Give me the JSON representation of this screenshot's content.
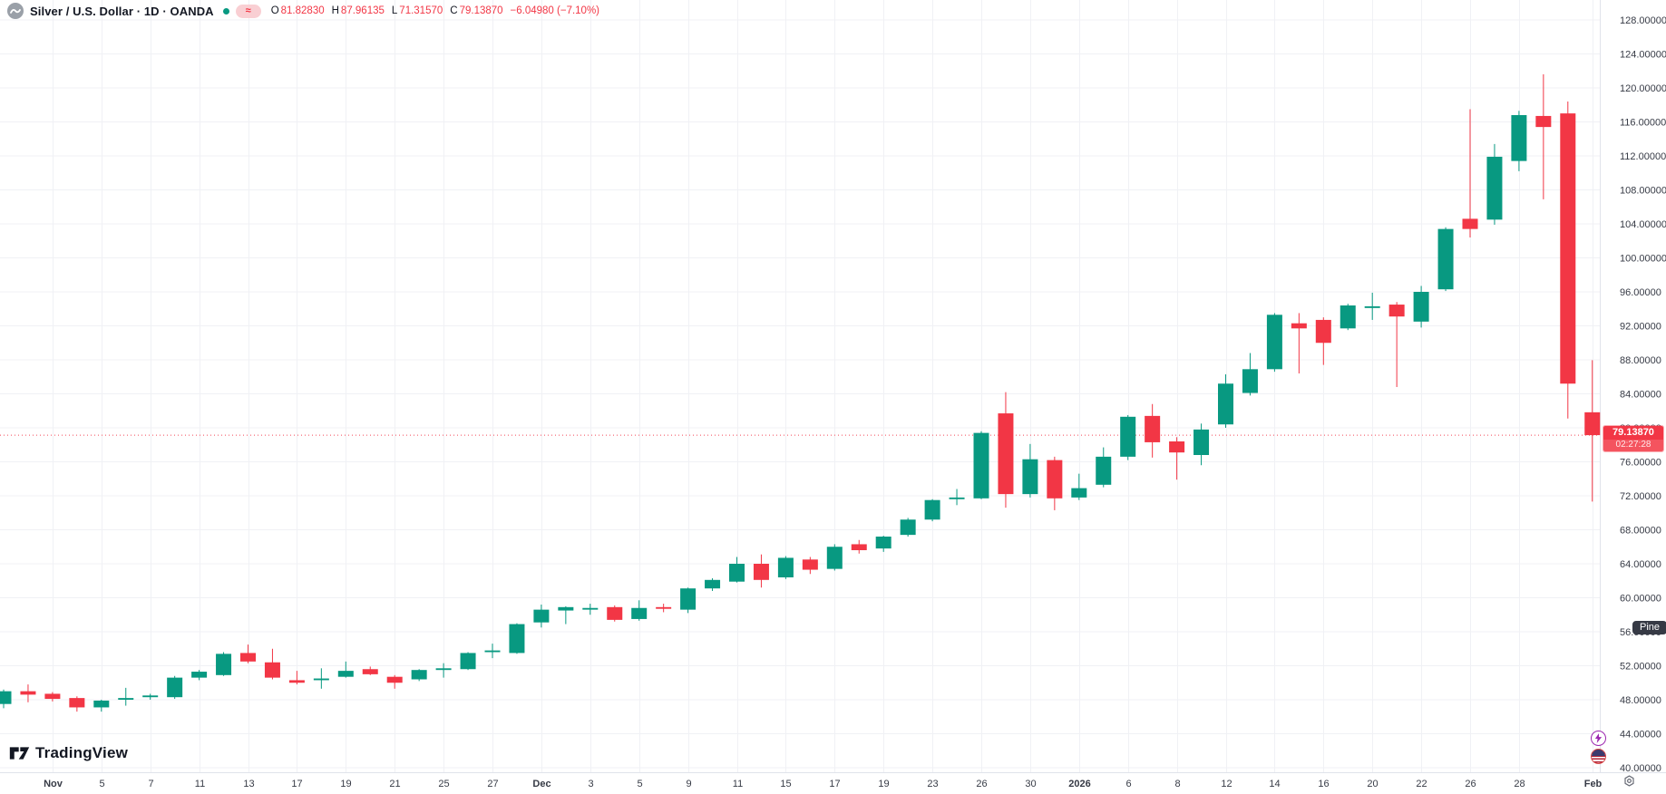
{
  "header": {
    "symbol_title": "Silver / U.S. Dollar · 1D · OANDA",
    "market_status_glyph": "≈",
    "ohlc_pairs": [
      {
        "k": "O",
        "v": "81.82830"
      },
      {
        "k": "H",
        "v": "87.96135"
      },
      {
        "k": "L",
        "v": "71.31570"
      },
      {
        "k": "C",
        "v": "79.13870"
      }
    ],
    "change_text": "−6.04980 (−7.10%)"
  },
  "badge": {
    "price": "79.13870",
    "countdown": "02:27:28"
  },
  "tooltip": {
    "text": "Pine"
  },
  "watermark": {
    "text": "TradingView"
  },
  "colors": {
    "up": "#089981",
    "down": "#f23645",
    "grid": "#f0f1f5",
    "axis_border": "#e0e3eb",
    "axis_text": "#363a45",
    "price_line": "#f23645",
    "badge_bg": "#f23645",
    "tooltip_bg": "#363a45",
    "bolt_purple": "#9c27b0"
  },
  "chart_data": {
    "type": "candlestick",
    "title": "Silver / U.S. Dollar",
    "interval": "1D",
    "exchange": "OANDA",
    "ylim": [
      40,
      128
    ],
    "y_tick_step": 4,
    "y_tick_labels": [
      "128.00000",
      "124.00000",
      "120.00000",
      "116.00000",
      "112.00000",
      "108.00000",
      "104.00000",
      "100.00000",
      "96.00000",
      "92.00000",
      "88.00000",
      "84.00000",
      "80.00000",
      "76.00000",
      "72.00000",
      "68.00000",
      "64.00000",
      "60.00000",
      "56.00000",
      "52.00000",
      "48.00000",
      "44.00000",
      "40.00000"
    ],
    "current_price": 79.1387,
    "grid": true,
    "x_ticks": [
      {
        "label": "Nov",
        "index": 2,
        "bold": true
      },
      {
        "label": "5",
        "index": 4,
        "bold": false
      },
      {
        "label": "7",
        "index": 6,
        "bold": false
      },
      {
        "label": "11",
        "index": 8,
        "bold": false
      },
      {
        "label": "13",
        "index": 10,
        "bold": false
      },
      {
        "label": "17",
        "index": 12,
        "bold": false
      },
      {
        "label": "19",
        "index": 14,
        "bold": false
      },
      {
        "label": "21",
        "index": 16,
        "bold": false
      },
      {
        "label": "25",
        "index": 18,
        "bold": false
      },
      {
        "label": "27",
        "index": 20,
        "bold": false
      },
      {
        "label": "Dec",
        "index": 22,
        "bold": true
      },
      {
        "label": "3",
        "index": 24,
        "bold": false
      },
      {
        "label": "5",
        "index": 26,
        "bold": false
      },
      {
        "label": "9",
        "index": 28,
        "bold": false
      },
      {
        "label": "11",
        "index": 30,
        "bold": false
      },
      {
        "label": "15",
        "index": 32,
        "bold": false
      },
      {
        "label": "17",
        "index": 34,
        "bold": false
      },
      {
        "label": "19",
        "index": 36,
        "bold": false
      },
      {
        "label": "23",
        "index": 38,
        "bold": false
      },
      {
        "label": "26",
        "index": 40,
        "bold": false
      },
      {
        "label": "30",
        "index": 42,
        "bold": false
      },
      {
        "label": "2026",
        "index": 44,
        "bold": true
      },
      {
        "label": "6",
        "index": 46,
        "bold": false
      },
      {
        "label": "8",
        "index": 48,
        "bold": false
      },
      {
        "label": "12",
        "index": 50,
        "bold": false
      },
      {
        "label": "14",
        "index": 52,
        "bold": false
      },
      {
        "label": "16",
        "index": 54,
        "bold": false
      },
      {
        "label": "20",
        "index": 56,
        "bold": false
      },
      {
        "label": "22",
        "index": 58,
        "bold": false
      },
      {
        "label": "26",
        "index": 60,
        "bold": false
      },
      {
        "label": "28",
        "index": 62,
        "bold": false
      },
      {
        "label": "Feb",
        "index": 65,
        "bold": true
      }
    ],
    "candles": [
      {
        "d": "Oct 30",
        "o": 47.5,
        "h": 49.2,
        "l": 47.0,
        "c": 49.0
      },
      {
        "d": "Oct 31",
        "o": 49.0,
        "h": 49.8,
        "l": 47.7,
        "c": 48.6
      },
      {
        "d": "Nov 3",
        "o": 48.7,
        "h": 48.9,
        "l": 47.8,
        "c": 48.1
      },
      {
        "d": "Nov 4",
        "o": 48.2,
        "h": 48.4,
        "l": 46.6,
        "c": 47.1
      },
      {
        "d": "Nov 5",
        "o": 47.1,
        "h": 48.0,
        "l": 46.6,
        "c": 47.9
      },
      {
        "d": "Nov 6",
        "o": 48.0,
        "h": 49.4,
        "l": 47.3,
        "c": 48.2
      },
      {
        "d": "Nov 7",
        "o": 48.3,
        "h": 48.7,
        "l": 48.0,
        "c": 48.5
      },
      {
        "d": "Nov 10",
        "o": 48.3,
        "h": 50.8,
        "l": 48.1,
        "c": 50.6
      },
      {
        "d": "Nov 11",
        "o": 50.6,
        "h": 51.5,
        "l": 50.3,
        "c": 51.3
      },
      {
        "d": "Nov 12",
        "o": 50.9,
        "h": 53.6,
        "l": 50.8,
        "c": 53.4
      },
      {
        "d": "Nov 13",
        "o": 53.5,
        "h": 54.5,
        "l": 52.3,
        "c": 52.5
      },
      {
        "d": "Nov 14",
        "o": 52.4,
        "h": 54.0,
        "l": 50.4,
        "c": 50.6
      },
      {
        "d": "Nov 17",
        "o": 50.3,
        "h": 51.4,
        "l": 49.8,
        "c": 50.0
      },
      {
        "d": "Nov 18",
        "o": 50.3,
        "h": 51.7,
        "l": 49.3,
        "c": 50.5
      },
      {
        "d": "Nov 19",
        "o": 50.7,
        "h": 52.5,
        "l": 50.6,
        "c": 51.4
      },
      {
        "d": "Nov 20",
        "o": 51.6,
        "h": 51.9,
        "l": 50.9,
        "c": 51.0
      },
      {
        "d": "Nov 21",
        "o": 50.7,
        "h": 50.9,
        "l": 49.3,
        "c": 50.0
      },
      {
        "d": "Nov 24",
        "o": 50.4,
        "h": 51.6,
        "l": 50.2,
        "c": 51.5
      },
      {
        "d": "Nov 25",
        "o": 51.5,
        "h": 52.3,
        "l": 50.6,
        "c": 51.7
      },
      {
        "d": "Nov 26",
        "o": 51.6,
        "h": 53.6,
        "l": 51.5,
        "c": 53.5
      },
      {
        "d": "Nov 27",
        "o": 53.6,
        "h": 54.6,
        "l": 52.9,
        "c": 53.8
      },
      {
        "d": "Nov 28",
        "o": 53.5,
        "h": 57.0,
        "l": 53.4,
        "c": 56.9
      },
      {
        "d": "Dec 1",
        "o": 57.1,
        "h": 59.2,
        "l": 56.5,
        "c": 58.6
      },
      {
        "d": "Dec 2",
        "o": 58.5,
        "h": 59.0,
        "l": 56.9,
        "c": 58.9
      },
      {
        "d": "Dec 3",
        "o": 58.6,
        "h": 59.3,
        "l": 58.0,
        "c": 58.8
      },
      {
        "d": "Dec 4",
        "o": 58.9,
        "h": 59.1,
        "l": 57.2,
        "c": 57.4
      },
      {
        "d": "Dec 5",
        "o": 57.5,
        "h": 59.7,
        "l": 57.3,
        "c": 58.8
      },
      {
        "d": "Dec 8",
        "o": 58.9,
        "h": 59.3,
        "l": 58.3,
        "c": 58.7
      },
      {
        "d": "Dec 9",
        "o": 58.6,
        "h": 61.2,
        "l": 58.2,
        "c": 61.1
      },
      {
        "d": "Dec 10",
        "o": 61.1,
        "h": 62.3,
        "l": 60.8,
        "c": 62.1
      },
      {
        "d": "Dec 11",
        "o": 61.9,
        "h": 64.8,
        "l": 61.8,
        "c": 64.0
      },
      {
        "d": "Dec 12",
        "o": 64.0,
        "h": 65.1,
        "l": 61.2,
        "c": 62.1
      },
      {
        "d": "Dec 15",
        "o": 62.4,
        "h": 64.9,
        "l": 62.2,
        "c": 64.7
      },
      {
        "d": "Dec 16",
        "o": 64.5,
        "h": 64.8,
        "l": 62.8,
        "c": 63.3
      },
      {
        "d": "Dec 17",
        "o": 63.4,
        "h": 66.3,
        "l": 63.2,
        "c": 66.0
      },
      {
        "d": "Dec 18",
        "o": 66.3,
        "h": 66.8,
        "l": 65.2,
        "c": 65.6
      },
      {
        "d": "Dec 19",
        "o": 65.8,
        "h": 67.3,
        "l": 65.4,
        "c": 67.2
      },
      {
        "d": "Dec 22",
        "o": 67.4,
        "h": 69.4,
        "l": 67.2,
        "c": 69.2
      },
      {
        "d": "Dec 23",
        "o": 69.2,
        "h": 71.6,
        "l": 69.0,
        "c": 71.5
      },
      {
        "d": "Dec 24",
        "o": 71.6,
        "h": 72.8,
        "l": 70.9,
        "c": 71.8
      },
      {
        "d": "Dec 26",
        "o": 71.7,
        "h": 79.6,
        "l": 71.6,
        "c": 79.4
      },
      {
        "d": "Dec 29",
        "o": 81.7,
        "h": 84.2,
        "l": 70.6,
        "c": 72.2
      },
      {
        "d": "Dec 30",
        "o": 72.2,
        "h": 78.1,
        "l": 71.8,
        "c": 76.3
      },
      {
        "d": "Dec 31",
        "o": 76.2,
        "h": 76.6,
        "l": 70.3,
        "c": 71.7
      },
      {
        "d": "Jan 2",
        "o": 71.8,
        "h": 74.6,
        "l": 71.5,
        "c": 72.9
      },
      {
        "d": "Jan 5",
        "o": 73.3,
        "h": 77.7,
        "l": 73.0,
        "c": 76.6
      },
      {
        "d": "Jan 6",
        "o": 76.6,
        "h": 81.5,
        "l": 76.2,
        "c": 81.3
      },
      {
        "d": "Jan 7",
        "o": 81.4,
        "h": 82.8,
        "l": 76.5,
        "c": 78.3
      },
      {
        "d": "Jan 8",
        "o": 78.4,
        "h": 78.9,
        "l": 73.9,
        "c": 77.1
      },
      {
        "d": "Jan 9",
        "o": 76.8,
        "h": 80.5,
        "l": 75.6,
        "c": 79.8
      },
      {
        "d": "Jan 12",
        "o": 80.4,
        "h": 86.3,
        "l": 80.0,
        "c": 85.2
      },
      {
        "d": "Jan 13",
        "o": 84.1,
        "h": 88.8,
        "l": 83.8,
        "c": 86.9
      },
      {
        "d": "Jan 14",
        "o": 86.9,
        "h": 93.5,
        "l": 86.6,
        "c": 93.3
      },
      {
        "d": "Jan 15",
        "o": 92.3,
        "h": 93.5,
        "l": 86.4,
        "c": 91.7
      },
      {
        "d": "Jan 16",
        "o": 92.7,
        "h": 93.0,
        "l": 87.4,
        "c": 90.0
      },
      {
        "d": "Jan 19",
        "o": 91.7,
        "h": 94.6,
        "l": 91.5,
        "c": 94.4
      },
      {
        "d": "Jan 20",
        "o": 94.1,
        "h": 95.9,
        "l": 92.7,
        "c": 94.3
      },
      {
        "d": "Jan 21",
        "o": 94.5,
        "h": 94.8,
        "l": 84.8,
        "c": 93.1
      },
      {
        "d": "Jan 22",
        "o": 92.5,
        "h": 96.7,
        "l": 91.8,
        "c": 96.0
      },
      {
        "d": "Jan 23",
        "o": 96.3,
        "h": 103.6,
        "l": 96.1,
        "c": 103.4
      },
      {
        "d": "Jan 26",
        "o": 104.6,
        "h": 117.5,
        "l": 102.4,
        "c": 103.4
      },
      {
        "d": "Jan 27",
        "o": 104.5,
        "h": 113.4,
        "l": 103.9,
        "c": 111.9
      },
      {
        "d": "Jan 28",
        "o": 111.4,
        "h": 117.3,
        "l": 110.2,
        "c": 116.8
      },
      {
        "d": "Jan 29",
        "o": 116.7,
        "h": 121.6,
        "l": 106.9,
        "c": 115.4
      },
      {
        "d": "Jan 30",
        "o": 117.0,
        "h": 118.4,
        "l": 81.1,
        "c": 85.2
      },
      {
        "d": "Feb 2",
        "o": 81.8283,
        "h": 87.96135,
        "l": 71.3157,
        "c": 79.1387
      }
    ]
  }
}
